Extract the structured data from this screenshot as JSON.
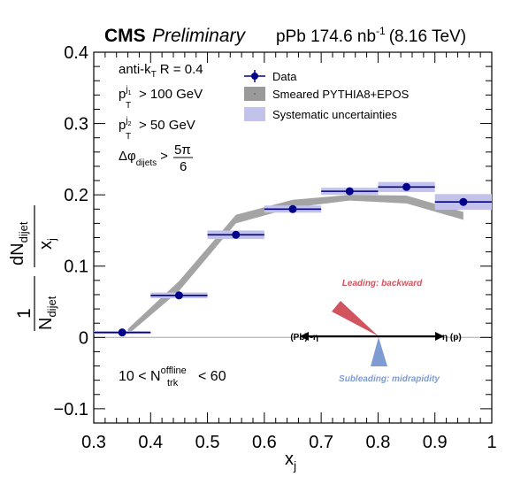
{
  "header": {
    "experiment": "CMS",
    "status": "Preliminary",
    "dataset_prefix": "pPb 174.6 nb",
    "dataset_exp": "-1",
    "dataset_suffix": "(8.16 TeV)"
  },
  "annotations": {
    "algo_prefix": "anti-k",
    "algo_sub": "T",
    "algo_suffix": "R = 0.4",
    "pt1_base": "p",
    "pt1_sup": "j",
    "pt1_supsub": "1",
    "pt1_sub": "T",
    "pt1_cut": "> 100 GeV",
    "pt2_base": "p",
    "pt2_sup": "j",
    "pt2_supsub": "2",
    "pt2_sub": "T",
    "pt2_cut": "> 50 GeV",
    "dphi_base": "Δφ",
    "dphi_sub": "dijets",
    "dphi_cut": ">",
    "dphi_num": "5π",
    "dphi_den": "6",
    "mult_prefix": "10 < N",
    "mult_sup": "offline",
    "mult_sub": "trk",
    "mult_suffix": "< 60"
  },
  "legend": {
    "data": "Data",
    "mc": "Smeared PYTHIA8+EPOS",
    "syst": "Systematic uncertainties"
  },
  "diagram": {
    "leading": "Leading: backward",
    "subleading": "Subleading: midrapidity",
    "left_label": "(Pb) -η",
    "right_label": "η (p)",
    "leading_color": "#d2545f",
    "subleading_color": "#7f9bd3"
  },
  "colors": {
    "data": "#00008b",
    "syst_fill": "#c2c2ea",
    "mc_band": "#9a9a9a"
  },
  "chart_data": {
    "type": "scatter",
    "xlabel_base": "x",
    "xlabel_sub": "j",
    "ylabel_num_base": "dN",
    "ylabel_num_sub": "dijet",
    "ylabel_den_base": "x",
    "ylabel_den_sub": "j",
    "ylabel_pre_num": "1",
    "ylabel_pre_den_base": "N",
    "ylabel_pre_den_sub": "dijet",
    "xlim": [
      0.3,
      1.0
    ],
    "ylim": [
      -0.12,
      0.4
    ],
    "x_ticks": [
      {
        "v": 0.3,
        "label": "0.3"
      },
      {
        "v": 0.4,
        "label": "0.4"
      },
      {
        "v": 0.5,
        "label": "0.5"
      },
      {
        "v": 0.6,
        "label": "0.6"
      },
      {
        "v": 0.7,
        "label": "0.7"
      },
      {
        "v": 0.8,
        "label": "0.8"
      },
      {
        "v": 0.9,
        "label": "0.9"
      },
      {
        "v": 1.0,
        "label": "1"
      }
    ],
    "y_ticks": [
      {
        "v": -0.1,
        "label": "−0.1"
      },
      {
        "v": 0.0,
        "label": "0"
      },
      {
        "v": 0.1,
        "label": "0.1"
      },
      {
        "v": 0.2,
        "label": "0.2"
      },
      {
        "v": 0.3,
        "label": "0.3"
      },
      {
        "v": 0.4,
        "label": "0.4"
      }
    ],
    "series": [
      {
        "name": "Data",
        "points": [
          {
            "x": 0.35,
            "xlo": 0.3,
            "xhi": 0.4,
            "y": 0.007,
            "syst": 0.0
          },
          {
            "x": 0.45,
            "xlo": 0.4,
            "xhi": 0.5,
            "y": 0.059,
            "syst": 0.004
          },
          {
            "x": 0.55,
            "xlo": 0.5,
            "xhi": 0.6,
            "y": 0.144,
            "syst": 0.006
          },
          {
            "x": 0.65,
            "xlo": 0.6,
            "xhi": 0.7,
            "y": 0.18,
            "syst": 0.005
          },
          {
            "x": 0.75,
            "xlo": 0.7,
            "xhi": 0.8,
            "y": 0.205,
            "syst": 0.005
          },
          {
            "x": 0.85,
            "xlo": 0.8,
            "xhi": 0.9,
            "y": 0.211,
            "syst": 0.007
          },
          {
            "x": 0.95,
            "xlo": 0.9,
            "xhi": 1.0,
            "y": 0.19,
            "syst": 0.011
          }
        ]
      },
      {
        "name": "Smeared PYTHIA8+EPOS",
        "points": [
          {
            "x": 0.36,
            "lo": 0.004,
            "hi": 0.012
          },
          {
            "x": 0.45,
            "lo": 0.065,
            "hi": 0.079
          },
          {
            "x": 0.55,
            "lo": 0.16,
            "hi": 0.172
          },
          {
            "x": 0.65,
            "lo": 0.182,
            "hi": 0.193
          },
          {
            "x": 0.75,
            "lo": 0.192,
            "hi": 0.2
          },
          {
            "x": 0.85,
            "lo": 0.188,
            "hi": 0.199
          },
          {
            "x": 0.95,
            "lo": 0.165,
            "hi": 0.176
          }
        ]
      }
    ]
  }
}
